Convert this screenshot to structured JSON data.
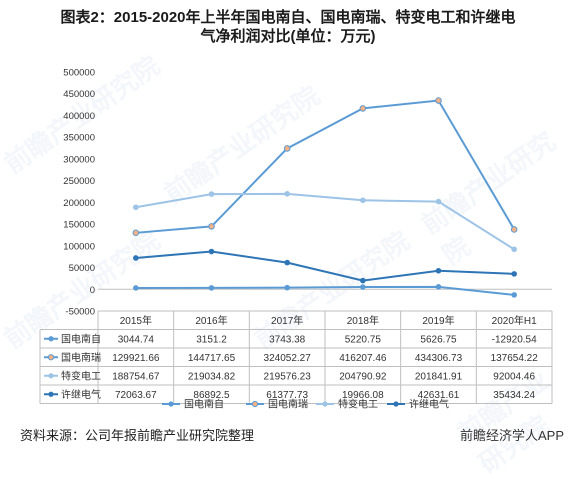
{
  "title": "图表2：2015-2020年上半年国电南自、国电南瑞、特变电工和许继电气净利润对比(单位：万元)",
  "watermark": "前瞻产业研究院",
  "source": "资料来源：公司年报前瞻产业研究院整理",
  "brand": "前瞻经济学人APP",
  "chart_data": {
    "type": "line",
    "title": "图表2：2015-2020年上半年国电南自、国电南瑞、特变电工和许继电气净利润对比(单位：万元)",
    "categories": [
      "2015年",
      "2016年",
      "2017年",
      "2018年",
      "2019年",
      "2020年H1"
    ],
    "ylim": [
      -50000,
      500000
    ],
    "yticks": [
      -50000,
      0,
      50000,
      100000,
      150000,
      200000,
      250000,
      300000,
      350000,
      400000,
      450000,
      500000
    ],
    "grid": false,
    "legend_position": "bottom",
    "data_table": true,
    "series": [
      {
        "name": "国电南自",
        "color": "#5B9BD5",
        "values": [
          3044.74,
          3151.2,
          3743.38,
          5220.75,
          5626.75,
          -12920.54
        ],
        "labels": [
          "3044.74",
          "3151.2",
          "3743.38",
          "5220.75",
          "5626.75",
          "-12920.54"
        ]
      },
      {
        "name": "国电南瑞",
        "color": "#5B9BD5",
        "marker_fill": "#F4B183",
        "values": [
          129921.66,
          144717.65,
          324052.27,
          416207.46,
          434306.73,
          137654.22
        ],
        "labels": [
          "129921.66",
          "144717.65",
          "324052.27",
          "416207.46",
          "434306.73",
          "137654.22"
        ]
      },
      {
        "name": "特变电工",
        "color": "#9DC3E6",
        "values": [
          188754.67,
          219034.82,
          219576.23,
          204790.92,
          201841.91,
          92004.46
        ],
        "labels": [
          "188754.67",
          "219034.82",
          "219576.23",
          "204790.92",
          "201841.91",
          "92004.46"
        ]
      },
      {
        "name": "许继电气",
        "color": "#2E75B6",
        "values": [
          72063.67,
          86892.5,
          61377.73,
          19966.08,
          42631.61,
          35434.24
        ],
        "labels": [
          "72063.67",
          "86892.5",
          "61377.73",
          "19966.08",
          "42631.61",
          "35434.24"
        ]
      }
    ]
  }
}
